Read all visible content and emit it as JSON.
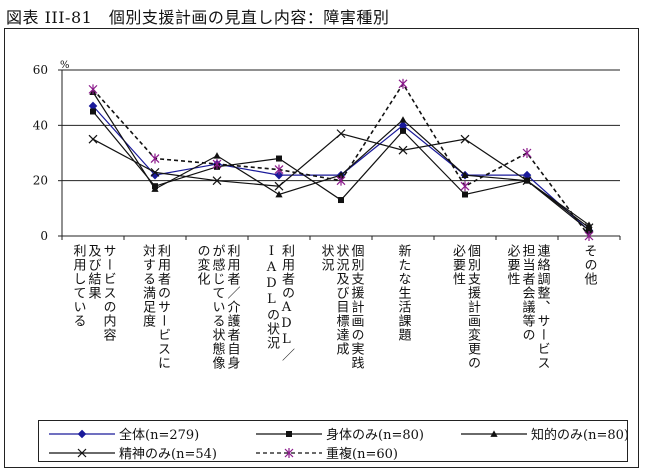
{
  "figure_title": "図表 III-81　個別支援計画の見直し内容：障害種別",
  "colors": {
    "blue": "#1a1a9a",
    "black": "#111111",
    "purple": "#8b1a8b"
  },
  "chart_data": {
    "type": "line",
    "ylabel": "%",
    "ylim": [
      0,
      60
    ],
    "yticks": [
      0,
      20,
      40,
      60
    ],
    "grid": true,
    "legend_placement": "bottom",
    "categories": [
      "サービスの内容及び結果利用している",
      "利用者のサービスに対する満足度",
      "利用者／介護者自身が感じている状態像の変化",
      "利用者のADL／IADLの状況",
      "個別支援計画の実践状況及び目標達成状況",
      "新たな生活課題",
      "個別支援計画変更の必要性",
      "連絡調整、サービス担当者会議等の必要性",
      "その他"
    ],
    "category_lines": [
      [
        "サービスの内容",
        "及び結果",
        "利用している"
      ],
      [
        "利用者のサービスに",
        "対する満足度"
      ],
      [
        "利用者／介護者自身",
        "が感じている状態像",
        "の変化"
      ],
      [
        "利用者のADL／",
        "IADLの状況"
      ],
      [
        "個別支援計画の実践",
        "状況及び目標達成",
        "状況"
      ],
      [
        "新たな生活課題"
      ],
      [
        "個別支援計画変更の",
        "必要性"
      ],
      [
        "連絡調整、サービス",
        "担当者会議等の",
        "必要性"
      ],
      [
        "その他"
      ]
    ],
    "series": [
      {
        "name": "全体(n=279)",
        "values": [
          47,
          22,
          26,
          22,
          22,
          40,
          22,
          22,
          2
        ],
        "color": "#1a1a9a",
        "marker": "diamond",
        "dash": "solid"
      },
      {
        "name": "身体のみ(n=80)",
        "values": [
          45,
          18,
          25,
          28,
          13,
          38,
          15,
          20,
          2
        ],
        "color": "#111111",
        "marker": "square",
        "dash": "solid"
      },
      {
        "name": "知的のみ(n=80)",
        "values": [
          52,
          17,
          29,
          15,
          22,
          42,
          22,
          20,
          4
        ],
        "color": "#111111",
        "marker": "triangle",
        "dash": "solid"
      },
      {
        "name": "精神のみ(n=54)",
        "values": [
          35,
          23,
          20,
          18,
          37,
          31,
          35,
          20,
          3
        ],
        "color": "#111111",
        "marker": "x",
        "dash": "solid"
      },
      {
        "name": "重複(n=60)",
        "values": [
          53,
          28,
          26,
          24,
          20,
          55,
          18,
          30,
          0
        ],
        "color": "#8b1a8b",
        "marker": "star",
        "dash": "dashed"
      }
    ]
  }
}
